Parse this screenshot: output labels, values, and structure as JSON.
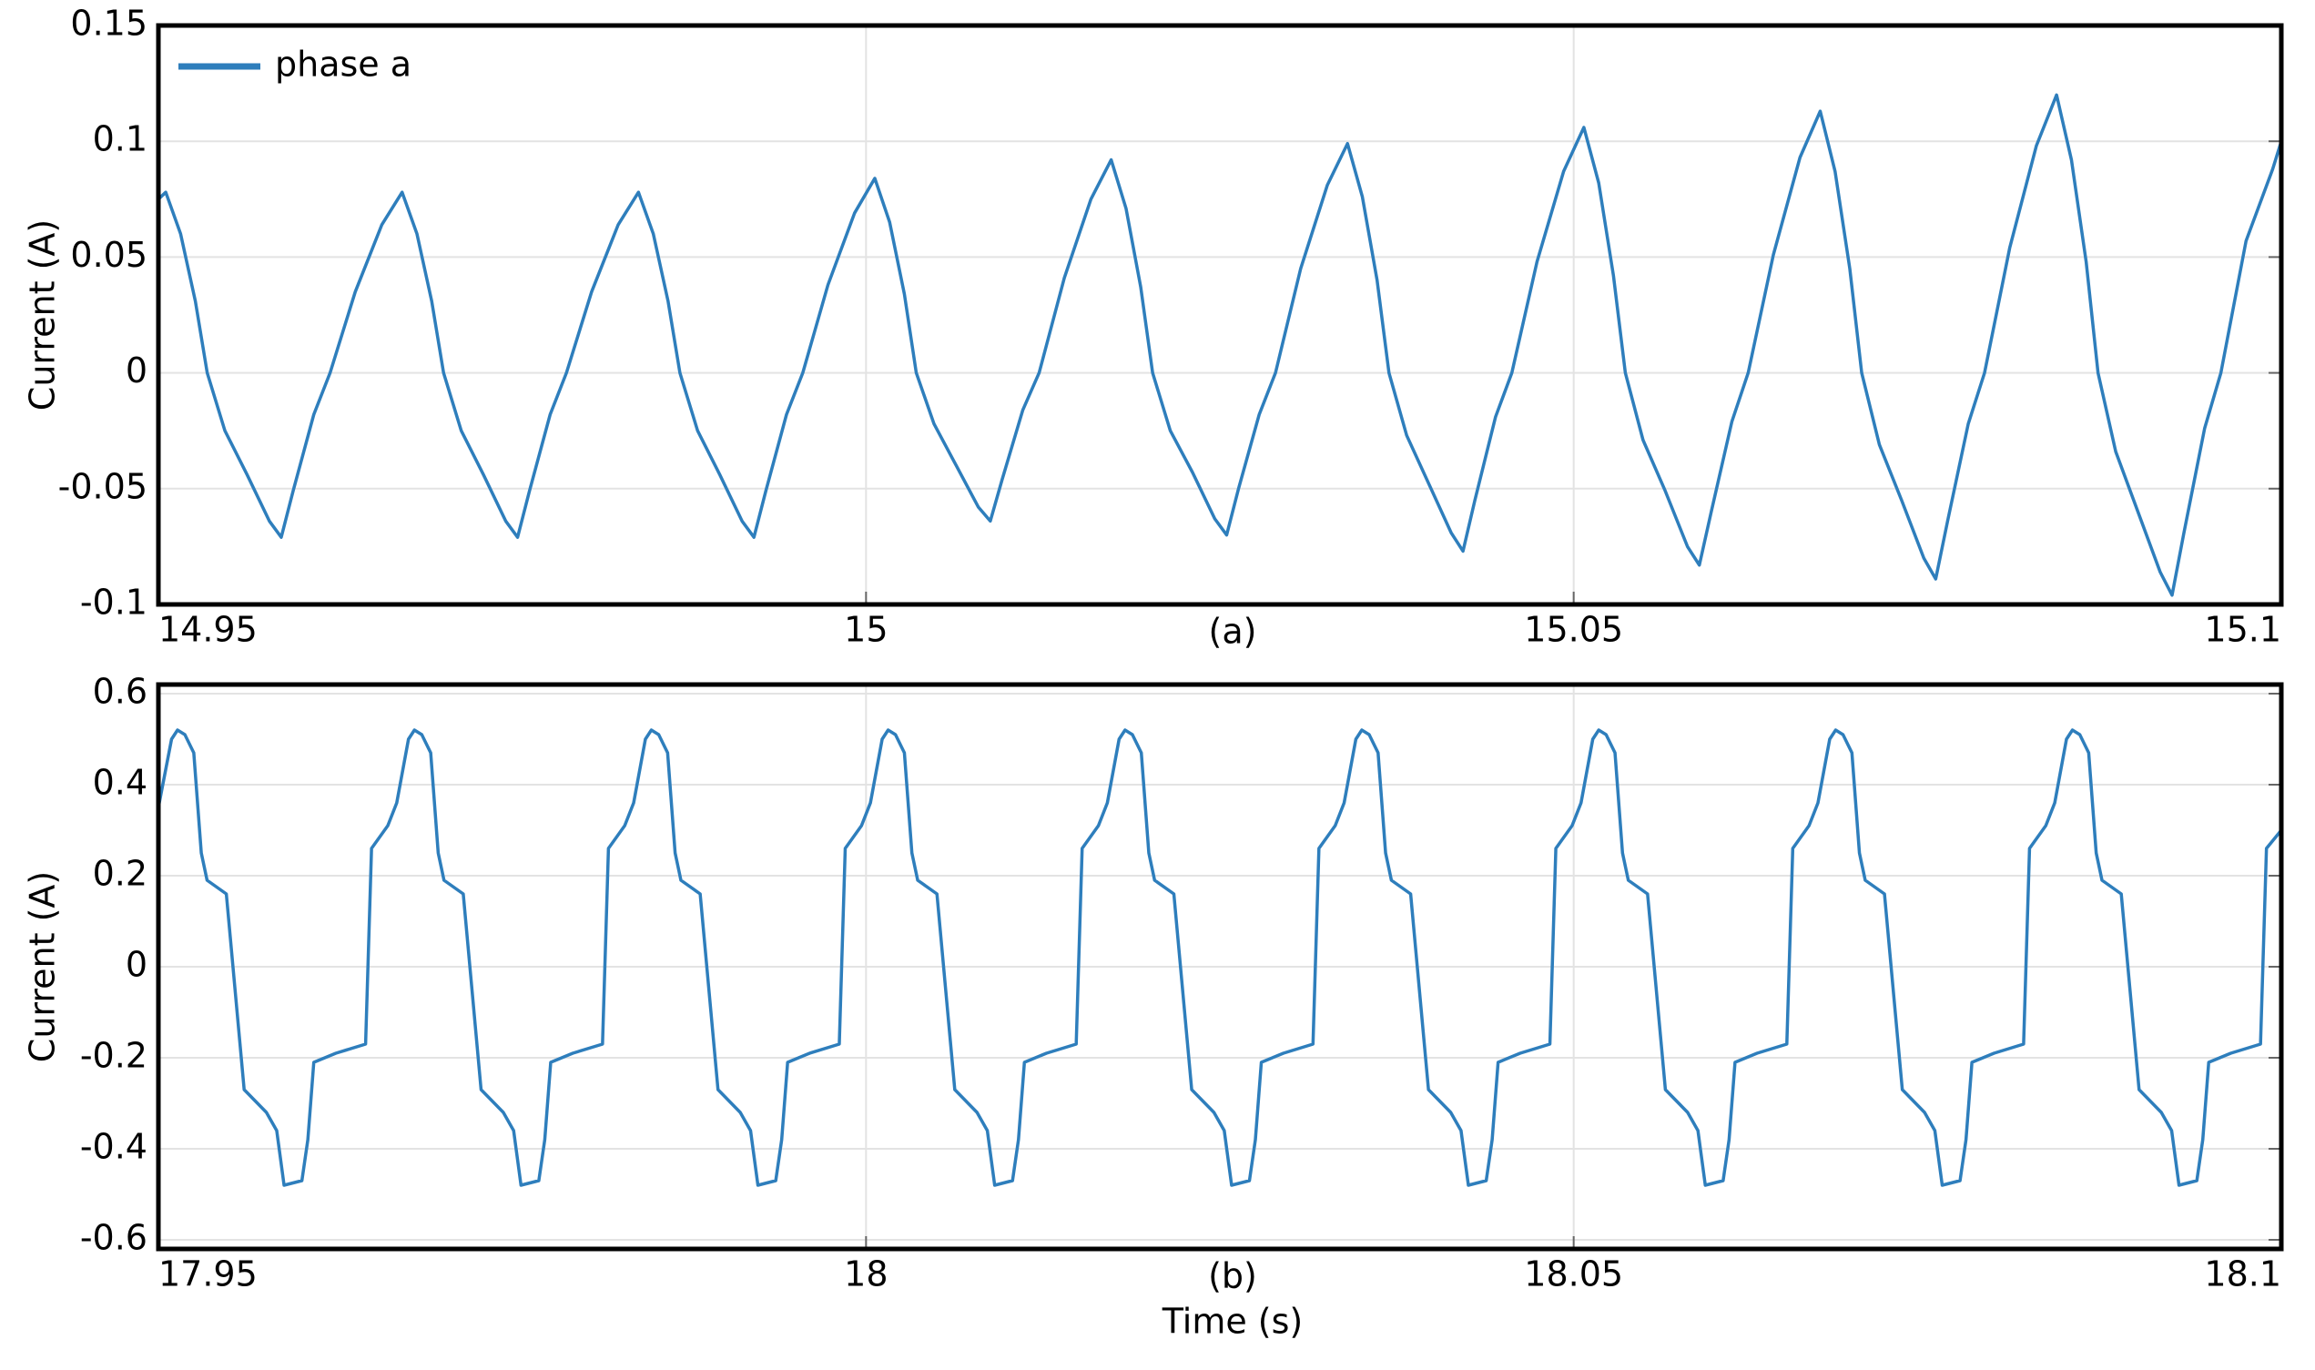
{
  "chart_data": [
    {
      "type": "line",
      "caption": "(a)",
      "ylabel": "Current (A)",
      "legend": "upper left",
      "grid": true,
      "xlim": [
        14.95,
        15.1
      ],
      "xticks": [
        14.95,
        15,
        15.05,
        15.1
      ],
      "ylim": [
        -0.1,
        0.15
      ],
      "yticks": [
        -0.1,
        -0.05,
        0,
        0.05,
        0.1,
        0.15
      ],
      "x": [
        14.95,
        14.95052,
        14.95157,
        14.95261,
        14.95345,
        14.9547,
        14.95627,
        14.95784,
        14.95868,
        14.95952,
        14.96098,
        14.96213,
        14.96391,
        14.96579,
        14.96722,
        14.96827,
        14.96931,
        14.97015,
        14.9714,
        14.97297,
        14.97454,
        14.97538,
        14.97622,
        14.97768,
        14.97883,
        14.98061,
        14.98249,
        14.98392,
        14.98497,
        14.98601,
        14.98685,
        14.9881,
        14.98967,
        14.99124,
        14.99208,
        14.99292,
        14.99438,
        14.99553,
        14.99731,
        14.99919,
        15.00062,
        15.00167,
        15.00271,
        15.00355,
        15.0048,
        15.00637,
        15.00794,
        15.00878,
        15.00962,
        15.01108,
        15.01223,
        15.01401,
        15.01589,
        15.01732,
        15.01837,
        15.01941,
        15.02025,
        15.0215,
        15.02307,
        15.02464,
        15.02548,
        15.02632,
        15.02778,
        15.02893,
        15.03071,
        15.03259,
        15.03402,
        15.03507,
        15.03611,
        15.03695,
        15.0382,
        15.03977,
        15.04134,
        15.04218,
        15.04302,
        15.04448,
        15.04563,
        15.04741,
        15.04929,
        15.05072,
        15.05177,
        15.05281,
        15.05365,
        15.0549,
        15.05647,
        15.05804,
        15.05888,
        15.05972,
        15.06118,
        15.06233,
        15.06411,
        15.06599,
        15.06742,
        15.06847,
        15.06951,
        15.07035,
        15.0716,
        15.07317,
        15.07474,
        15.07558,
        15.07642,
        15.07788,
        15.07903,
        15.08081,
        15.08269,
        15.08412,
        15.08517,
        15.08621,
        15.08705,
        15.0883,
        15.08987,
        15.09144,
        15.09228,
        15.09312,
        15.09458,
        15.09573,
        15.09751,
        15.09939,
        15.1
      ],
      "series": [
        {
          "name": "phase a",
          "color": "#2e7ebc",
          "values": [
            0.075,
            0.078,
            0.06,
            0.031,
            0,
            -0.025,
            -0.044,
            -0.064,
            -0.071,
            -0.051,
            -0.018,
            0,
            0.035,
            0.064,
            0.078,
            0.06,
            0.031,
            0,
            -0.025,
            -0.044,
            -0.064,
            -0.071,
            -0.051,
            -0.018,
            0,
            0.035,
            0.064,
            0.078,
            0.06,
            0.031,
            0,
            -0.025,
            -0.044,
            -0.064,
            -0.071,
            -0.051,
            -0.018,
            0,
            0.038,
            0.069,
            0.084,
            0.065,
            0.034,
            0,
            -0.022,
            -0.04,
            -0.058,
            -0.064,
            -0.046,
            -0.016,
            0,
            0.041,
            0.075,
            0.092,
            0.071,
            0.037,
            0,
            -0.025,
            -0.043,
            -0.063,
            -0.07,
            -0.05,
            -0.018,
            0,
            0.045,
            0.081,
            0.099,
            0.076,
            0.04,
            0,
            -0.027,
            -0.048,
            -0.069,
            -0.077,
            -0.055,
            -0.019,
            0,
            0.048,
            0.087,
            0.106,
            0.082,
            0.042,
            0,
            -0.029,
            -0.051,
            -0.075,
            -0.083,
            -0.06,
            -0.021,
            0,
            0.051,
            0.093,
            0.113,
            0.087,
            0.045,
            0,
            -0.031,
            -0.055,
            -0.08,
            -0.089,
            -0.064,
            -0.022,
            0,
            0.054,
            0.098,
            0.12,
            0.092,
            0.048,
            0,
            -0.034,
            -0.06,
            -0.086,
            -0.096,
            -0.069,
            -0.024,
            0,
            0.057,
            0.088,
            0.1
          ]
        }
      ]
    },
    {
      "type": "line",
      "caption": "(b)",
      "ylabel": "Current (A)",
      "xlabel": "Time (s)",
      "grid": true,
      "xlim": [
        17.95,
        18.1
      ],
      "xticks": [
        17.95,
        18,
        18.05,
        18.1
      ],
      "ylim": [
        -0.62,
        0.62
      ],
      "yticks": [
        -0.6,
        -0.4,
        -0.2,
        0,
        0.2,
        0.4,
        0.6
      ],
      "x": [
        17.95,
        17.95093,
        17.95135,
        17.95187,
        17.9525,
        17.95303,
        17.95344,
        17.9548,
        17.95606,
        17.95763,
        17.95836,
        17.95888,
        17.96014,
        17.96056,
        17.96098,
        17.96254,
        17.96464,
        17.96506,
        17.96621,
        17.96684,
        17.96767,
        17.96809,
        17.96861,
        17.96924,
        17.96977,
        17.97018,
        17.97154,
        17.9728,
        17.97437,
        17.9751,
        17.97562,
        17.97688,
        17.9773,
        17.97772,
        17.97928,
        17.98138,
        17.9818,
        17.98295,
        17.98358,
        17.98441,
        17.98483,
        17.98535,
        17.98598,
        17.98651,
        17.98692,
        17.98828,
        17.98954,
        17.99111,
        17.99184,
        17.99236,
        17.99362,
        17.99404,
        17.99446,
        17.99602,
        17.99811,
        17.99853,
        17.99968,
        18.00031,
        18.00114,
        18.00156,
        18.00208,
        18.00271,
        18.00324,
        18.00365,
        18.00501,
        18.00627,
        18.00784,
        18.00857,
        18.00909,
        18.01035,
        18.01077,
        18.01119,
        18.01275,
        18.01485,
        18.01527,
        18.01642,
        18.01705,
        18.01788,
        18.0183,
        18.01882,
        18.01945,
        18.01998,
        18.02039,
        18.02175,
        18.02301,
        18.02458,
        18.02531,
        18.02583,
        18.02709,
        18.02751,
        18.02793,
        18.02949,
        18.03158,
        18.032,
        18.03315,
        18.03378,
        18.03461,
        18.03503,
        18.03555,
        18.03618,
        18.03671,
        18.03712,
        18.03848,
        18.03974,
        18.04131,
        18.04204,
        18.04256,
        18.04382,
        18.04424,
        18.04466,
        18.04622,
        18.04832,
        18.04874,
        18.04989,
        18.05052,
        18.05135,
        18.05177,
        18.05229,
        18.05292,
        18.05345,
        18.05386,
        18.05522,
        18.05648,
        18.05805,
        18.05878,
        18.0593,
        18.06056,
        18.06098,
        18.0614,
        18.06296,
        18.06506,
        18.06548,
        18.06663,
        18.06726,
        18.06809,
        18.06851,
        18.06903,
        18.06966,
        18.07019,
        18.0706,
        18.07196,
        18.07322,
        18.07479,
        18.07552,
        18.07604,
        18.0773,
        18.07772,
        18.07814,
        18.0797,
        18.08179,
        18.08221,
        18.08336,
        18.08399,
        18.08482,
        18.08524,
        18.08576,
        18.08639,
        18.08692,
        18.08733,
        18.08869,
        18.08995,
        18.09152,
        18.09225,
        18.09277,
        18.09403,
        18.09445,
        18.09487,
        18.09643,
        18.09853,
        18.09895,
        18.1
      ],
      "series": [
        {
          "color": "#2e7ebc",
          "values": [
            0.35,
            0.5,
            0.52,
            0.51,
            0.47,
            0.25,
            0.19,
            0.16,
            -0.27,
            -0.32,
            -0.36,
            -0.48,
            -0.47,
            -0.38,
            -0.21,
            -0.19,
            -0.17,
            0.26,
            0.31,
            0.36,
            0.5,
            0.52,
            0.51,
            0.47,
            0.25,
            0.19,
            0.16,
            -0.27,
            -0.32,
            -0.36,
            -0.48,
            -0.47,
            -0.38,
            -0.21,
            -0.19,
            -0.17,
            0.26,
            0.31,
            0.36,
            0.5,
            0.52,
            0.51,
            0.47,
            0.25,
            0.19,
            0.16,
            -0.27,
            -0.32,
            -0.36,
            -0.48,
            -0.47,
            -0.38,
            -0.21,
            -0.19,
            -0.17,
            0.26,
            0.31,
            0.36,
            0.5,
            0.52,
            0.51,
            0.47,
            0.25,
            0.19,
            0.16,
            -0.27,
            -0.32,
            -0.36,
            -0.48,
            -0.47,
            -0.38,
            -0.21,
            -0.19,
            -0.17,
            0.26,
            0.31,
            0.36,
            0.5,
            0.52,
            0.51,
            0.47,
            0.25,
            0.19,
            0.16,
            -0.27,
            -0.32,
            -0.36,
            -0.48,
            -0.47,
            -0.38,
            -0.21,
            -0.19,
            -0.17,
            0.26,
            0.31,
            0.36,
            0.5,
            0.52,
            0.51,
            0.47,
            0.25,
            0.19,
            0.16,
            -0.27,
            -0.32,
            -0.36,
            -0.48,
            -0.47,
            -0.38,
            -0.21,
            -0.19,
            -0.17,
            0.26,
            0.31,
            0.36,
            0.5,
            0.52,
            0.51,
            0.47,
            0.25,
            0.19,
            0.16,
            -0.27,
            -0.32,
            -0.36,
            -0.48,
            -0.47,
            -0.38,
            -0.21,
            -0.19,
            -0.17,
            0.26,
            0.31,
            0.36,
            0.5,
            0.52,
            0.51,
            0.47,
            0.25,
            0.19,
            0.16,
            -0.27,
            -0.32,
            -0.36,
            -0.48,
            -0.47,
            -0.38,
            -0.21,
            -0.19,
            -0.17,
            0.26,
            0.31,
            0.36,
            0.5,
            0.52,
            0.51,
            0.47,
            0.25,
            0.19,
            0.16,
            -0.27,
            -0.32,
            -0.36,
            -0.48,
            -0.47,
            -0.38,
            -0.21,
            -0.19,
            -0.17,
            0.26,
            0.3
          ]
        }
      ]
    }
  ]
}
